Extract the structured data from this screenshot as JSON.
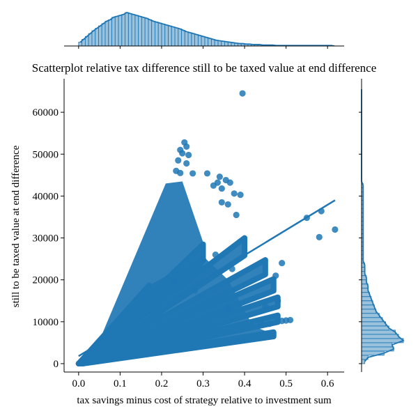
{
  "chart_data": {
    "type": "scatter",
    "title": "Scatterplot relative tax difference still to be taxed value at end difference",
    "xlabel": "tax savings minus cost of strategy relative to investment sum",
    "ylabel": "still to be taxed value at end difference",
    "xlim": [
      -0.035,
      0.64
    ],
    "ylim": [
      -2000,
      68000
    ],
    "x_ticks": [
      0.0,
      0.1,
      0.2,
      0.3,
      0.4,
      0.5,
      0.6
    ],
    "x_tick_labels": [
      "0.0",
      "0.1",
      "0.2",
      "0.3",
      "0.4",
      "0.5",
      "0.6"
    ],
    "y_ticks": [
      0,
      10000,
      20000,
      30000,
      40000,
      50000,
      60000
    ],
    "y_tick_labels": [
      "0",
      "10000",
      "20000",
      "30000",
      "40000",
      "50000",
      "60000"
    ],
    "grid": false,
    "color": "#1f77b4",
    "points": [
      [
        0.395,
        64500
      ],
      [
        0.255,
        52800
      ],
      [
        0.26,
        51800
      ],
      [
        0.245,
        51000
      ],
      [
        0.25,
        50200
      ],
      [
        0.265,
        49800
      ],
      [
        0.24,
        48500
      ],
      [
        0.26,
        47800
      ],
      [
        0.235,
        46000
      ],
      [
        0.245,
        45500
      ],
      [
        0.275,
        45400
      ],
      [
        0.31,
        45400
      ],
      [
        0.34,
        44600
      ],
      [
        0.355,
        43800
      ],
      [
        0.335,
        43200
      ],
      [
        0.365,
        43200
      ],
      [
        0.325,
        42500
      ],
      [
        0.345,
        41800
      ],
      [
        0.375,
        40600
      ],
      [
        0.39,
        40300
      ],
      [
        0.345,
        38500
      ],
      [
        0.36,
        38000
      ],
      [
        0.38,
        35500
      ],
      [
        0.55,
        34800
      ],
      [
        0.585,
        36400
      ],
      [
        0.58,
        30200
      ],
      [
        0.618,
        32000
      ],
      [
        0.49,
        24000
      ],
      [
        0.475,
        21000
      ],
      [
        0.48,
        15000
      ],
      [
        0.5,
        10300
      ],
      [
        0.51,
        10400
      ],
      [
        0.49,
        10200
      ],
      [
        0.44,
        9600
      ],
      [
        0.46,
        9500
      ],
      [
        0.3,
        24800
      ],
      [
        0.33,
        26000
      ],
      [
        0.37,
        22600
      ],
      [
        0.23,
        19700
      ],
      [
        0.28,
        17500
      ],
      [
        0.36,
        13500
      ],
      [
        0.45,
        13600
      ],
      [
        0.005,
        100
      ],
      [
        0.01,
        300
      ],
      [
        0.02,
        500
      ]
    ],
    "wedges": [
      {
        "slope": 110000,
        "xmax": 0.17
      },
      {
        "slope": 95000,
        "xmax": 0.3
      },
      {
        "slope": 75000,
        "xmax": 0.4
      },
      {
        "slope": 55000,
        "xmax": 0.45
      },
      {
        "slope": 43000,
        "xmax": 0.47
      },
      {
        "slope": 33000,
        "xmax": 0.48
      },
      {
        "slope": 24000,
        "xmax": 0.48
      },
      {
        "slope": 16000,
        "xmax": 0.47
      }
    ],
    "regression": {
      "x": [
        0.0,
        0.618
      ],
      "y": [
        1800,
        39000
      ]
    },
    "x_distribution": {
      "range": [
        0.0,
        0.62
      ],
      "bin_width": 0.008,
      "counts": [
        8,
        14,
        20,
        26,
        32,
        37,
        42,
        47,
        52,
        55,
        60,
        62,
        64,
        66,
        70,
        68,
        66,
        64,
        62,
        60,
        58,
        55,
        52,
        50,
        48,
        46,
        44,
        42,
        40,
        38,
        36,
        33,
        30,
        28,
        26,
        24,
        22,
        20,
        18,
        16,
        14,
        12,
        11,
        10,
        9,
        8,
        7,
        6,
        5,
        5,
        4,
        4,
        3,
        3,
        3,
        2,
        2,
        2,
        2,
        1,
        1,
        1,
        1,
        1,
        1,
        1,
        1,
        1,
        1,
        1,
        1,
        1,
        1,
        1,
        1,
        1,
        1
      ]
    },
    "y_distribution": {
      "range": [
        0,
        66000
      ],
      "bin_width": 1000,
      "counts": [
        2,
        4,
        14,
        20,
        19,
        26,
        23,
        21,
        17,
        15,
        13,
        11,
        9,
        8,
        7,
        6,
        5,
        4,
        4,
        3,
        3,
        2,
        2,
        2,
        1,
        1,
        1,
        1,
        1,
        1,
        1,
        1,
        1,
        1,
        1,
        1,
        1,
        1,
        1,
        1,
        1,
        1,
        1,
        0,
        0,
        0,
        0,
        0,
        0,
        0,
        0,
        0,
        0,
        0,
        0,
        0,
        0,
        0,
        0,
        0,
        0,
        0,
        0,
        0,
        0,
        0
      ]
    }
  }
}
